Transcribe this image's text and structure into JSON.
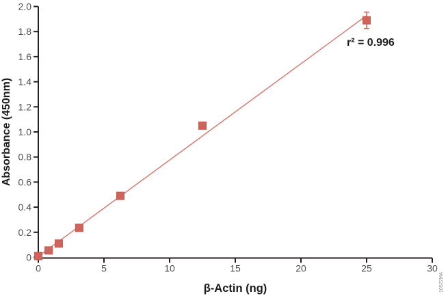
{
  "figure": {
    "figure_code": "10522MA",
    "background": "#FFFFFF"
  },
  "chart_data": {
    "type": "scatter",
    "title": "",
    "xlabel": "β-Actin (ng)",
    "ylabel": "Absorbance (450nm)",
    "xlim": [
      0,
      30
    ],
    "ylim": [
      0,
      2.0
    ],
    "xticks": [
      0,
      5,
      10,
      15,
      20,
      25,
      30
    ],
    "xtick_labels": [
      "0",
      "5",
      "10",
      "15",
      "20",
      "25",
      "30"
    ],
    "yticks": [
      0,
      0.2,
      0.4,
      0.6,
      0.8,
      1.0,
      1.2,
      1.4,
      1.6,
      1.8,
      2.0
    ],
    "ytick_labels": [
      "0",
      "0.2",
      "0.4",
      "0.6",
      "0.8",
      "1.0",
      "1.2",
      "1.4",
      "1.6",
      "1.8",
      "2.0"
    ],
    "grid": false,
    "legend": "none",
    "series": [
      {
        "marker": "square",
        "points": [
          {
            "x": 0,
            "y": 0.01
          },
          {
            "x": 0.78,
            "y": 0.055
          },
          {
            "x": 1.56,
            "y": 0.11
          },
          {
            "x": 3.12,
            "y": 0.235
          },
          {
            "x": 6.25,
            "y": 0.49
          },
          {
            "x": 12.5,
            "y": 1.05
          },
          {
            "x": 25,
            "y": 1.89,
            "yerr": 0.065
          }
        ]
      }
    ],
    "fit_line": {
      "x1": 0,
      "y1": 0.008,
      "x2": 24.95,
      "y2": 1.924,
      "r_squared": 0.996
    },
    "annotation": "r² = 0.996"
  },
  "style": {
    "marker_color": "#D0645C",
    "marker_stroke": "#C25A51",
    "line_color": "#D6736A",
    "axis_color": "#231F20",
    "tick_label_color": "#4D4D4F",
    "title_color": "#1A1A1A",
    "code_color": "#8A8C8E"
  }
}
